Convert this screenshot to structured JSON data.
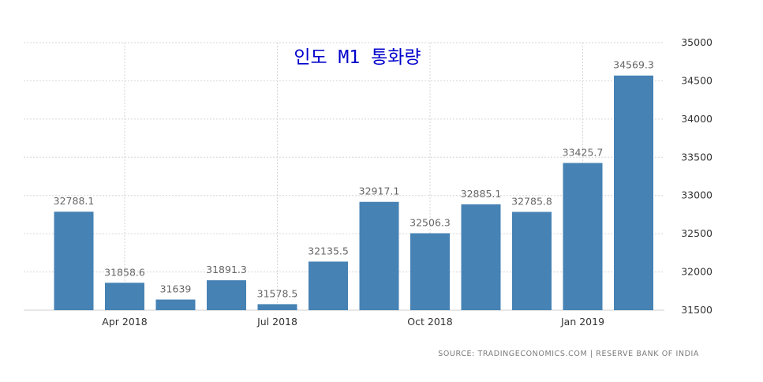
{
  "chart_data": {
    "type": "bar",
    "title": "인도 M1 통화량",
    "categories": [
      "2018-03",
      "2018-04",
      "2018-05",
      "2018-06",
      "2018-07",
      "2018-08",
      "2018-09",
      "2018-10",
      "2018-11",
      "2018-12",
      "2019-01",
      "2019-02"
    ],
    "values": [
      32788.1,
      31858.6,
      31639,
      31891.3,
      31578.5,
      32135.5,
      32917.1,
      32506.3,
      32885.1,
      32785.8,
      33425.7,
      34569.3
    ],
    "value_labels": [
      "32788.1",
      "31858.6",
      "31639",
      "31891.3",
      "31578.5",
      "32135.5",
      "32917.1",
      "32506.3",
      "32885.1",
      "32785.8",
      "33425.7",
      "34569.3"
    ],
    "x_ticks": [
      {
        "label": "Apr 2018",
        "category_index": 1
      },
      {
        "label": "Jul 2018",
        "category_index": 4
      },
      {
        "label": "Oct 2018",
        "category_index": 7
      },
      {
        "label": "Jan 2019",
        "category_index": 10
      }
    ],
    "y_ticks": [
      31500,
      32000,
      32500,
      33000,
      33500,
      34000,
      34500,
      35000
    ],
    "ylim": [
      31500,
      35000
    ],
    "y_axis_side": "right",
    "grid": true,
    "bar_color": "#4682b4",
    "xlabel": "",
    "ylabel": "",
    "source": "SOURCE: TRADINGECONOMICS.COM  |  RESERVE BANK OF INDIA"
  }
}
